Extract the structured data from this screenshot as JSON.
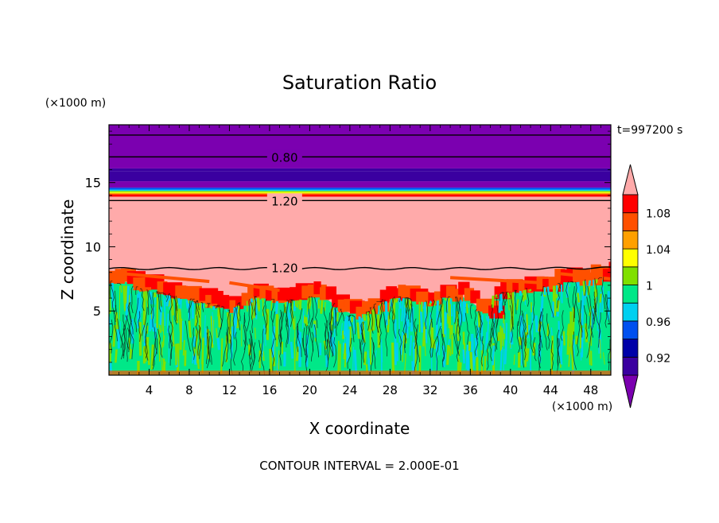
{
  "chart_data": {
    "type": "heatmap",
    "title": "Saturation Ratio",
    "xlabel": "X coordinate",
    "ylabel": "Z coordinate",
    "x_unit": "(×1000 m)",
    "y_unit": "(×1000 m)",
    "time_label": "t=997200 s",
    "footer": "CONTOUR INTERVAL = 2.000E-01",
    "xlim": [
      0,
      50
    ],
    "ylim": [
      0,
      19.5
    ],
    "x_ticks": [
      4,
      8,
      12,
      16,
      20,
      24,
      28,
      32,
      36,
      40,
      44,
      48
    ],
    "y_ticks": [
      5,
      10,
      15
    ],
    "contour_labels": [
      {
        "value": "0.80",
        "x": 17.5,
        "z": 17.0
      },
      {
        "value": "1.20",
        "x": 17.5,
        "z": 13.6
      },
      {
        "value": "1.20",
        "x": 17.5,
        "z": 8.4
      }
    ],
    "colorbar": {
      "levels": [
        0.9,
        0.92,
        0.94,
        0.96,
        0.98,
        1.0,
        1.02,
        1.04,
        1.06,
        1.08,
        1.1
      ],
      "tick_labels": [
        "0.92",
        "0.96",
        "1",
        "1.04",
        "1.08"
      ],
      "colors": [
        "#7B00B0",
        "#3A00A0",
        "#0000A8",
        "#0050F0",
        "#00D0F0",
        "#00E888",
        "#80E000",
        "#FFFF00",
        "#FFA000",
        "#FF5000",
        "#FF0000",
        "#FFAAAA"
      ],
      "extend": "both"
    },
    "field_description_layers": {
      "top_value": 0.8,
      "mid_value": 1.2,
      "boundary_layer_top_km": 8.3
    }
  }
}
